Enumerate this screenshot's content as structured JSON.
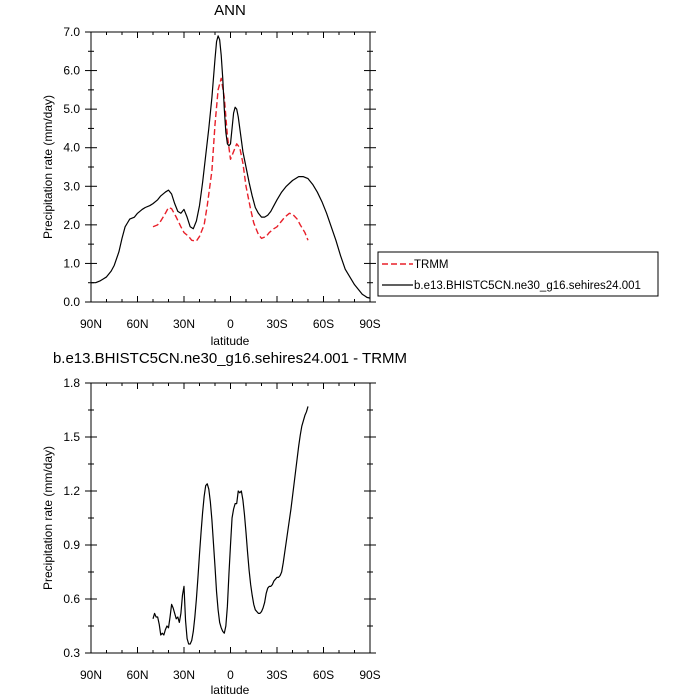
{
  "chart_data": [
    {
      "type": "line",
      "title": "ANN",
      "xlabel": "latitude",
      "ylabel": "Precipitation rate (mm/day)",
      "xlim": [
        -90,
        90
      ],
      "ylim": [
        0,
        7
      ],
      "x_ticks": [
        -90,
        -60,
        -30,
        0,
        30,
        60,
        90
      ],
      "x_tick_labels": [
        "90N",
        "60N",
        "30N",
        "0",
        "30S",
        "60S",
        "90S"
      ],
      "y_ticks": [
        0,
        1,
        2,
        3,
        4,
        5,
        6,
        7
      ],
      "y_tick_labels": [
        "0.0",
        "1.0",
        "2.0",
        "3.0",
        "4.0",
        "5.0",
        "6.0",
        "7.0"
      ],
      "grid": false,
      "legend_position": "right",
      "series": [
        {
          "name": "TRMM",
          "color": "#e8202a",
          "style": "dashed",
          "x": [
            -50,
            -47,
            -45,
            -42,
            -40,
            -38,
            -35,
            -32,
            -30,
            -27,
            -25,
            -22,
            -20,
            -17,
            -15,
            -12,
            -10,
            -8,
            -6,
            -4,
            -2,
            0,
            2,
            4,
            6,
            8,
            10,
            13,
            15,
            18,
            20,
            23,
            25,
            28,
            30,
            33,
            35,
            38,
            40,
            43,
            45,
            48,
            50
          ],
          "y": [
            1.95,
            2.0,
            2.1,
            2.3,
            2.45,
            2.42,
            2.2,
            1.95,
            1.8,
            1.7,
            1.6,
            1.58,
            1.7,
            2.0,
            2.5,
            3.4,
            4.6,
            5.5,
            5.8,
            5.3,
            4.3,
            3.7,
            3.9,
            4.1,
            4.0,
            3.6,
            3.0,
            2.4,
            2.05,
            1.75,
            1.65,
            1.7,
            1.8,
            1.9,
            1.95,
            2.1,
            2.2,
            2.3,
            2.28,
            2.15,
            2.0,
            1.8,
            1.6
          ]
        },
        {
          "name": "b.e13.BHISTC5CN.ne30_g16.sehires24.001",
          "color": "#000000",
          "style": "solid",
          "x": [
            -90,
            -87,
            -84,
            -82,
            -80,
            -77,
            -75,
            -72,
            -70,
            -68,
            -65,
            -62,
            -60,
            -57,
            -55,
            -52,
            -50,
            -47,
            -45,
            -42,
            -40,
            -38,
            -36,
            -34,
            -32,
            -30,
            -28,
            -26,
            -24,
            -22,
            -20,
            -18,
            -16,
            -14,
            -12,
            -10,
            -9,
            -8,
            -7,
            -6,
            -5,
            -4,
            -3,
            -2,
            -1,
            0,
            1,
            2,
            3,
            4,
            5,
            6,
            7,
            8,
            10,
            12,
            14,
            16,
            18,
            20,
            22,
            24,
            26,
            28,
            30,
            33,
            36,
            40,
            44,
            47,
            50,
            53,
            56,
            59,
            62,
            65,
            68,
            71,
            74,
            77,
            80,
            83,
            85,
            87,
            88,
            90
          ],
          "y": [
            0.5,
            0.5,
            0.55,
            0.6,
            0.65,
            0.8,
            0.95,
            1.3,
            1.65,
            1.95,
            2.15,
            2.2,
            2.3,
            2.4,
            2.45,
            2.5,
            2.55,
            2.65,
            2.75,
            2.85,
            2.9,
            2.8,
            2.55,
            2.35,
            2.3,
            2.4,
            2.2,
            1.95,
            1.9,
            2.1,
            2.5,
            3.1,
            3.8,
            4.5,
            5.3,
            6.3,
            6.75,
            6.9,
            6.8,
            6.4,
            5.8,
            5.0,
            4.4,
            4.1,
            4.05,
            4.1,
            4.5,
            4.9,
            5.05,
            5.0,
            4.8,
            4.5,
            4.2,
            3.9,
            3.5,
            3.1,
            2.75,
            2.45,
            2.3,
            2.2,
            2.2,
            2.25,
            2.35,
            2.5,
            2.65,
            2.85,
            3.0,
            3.15,
            3.25,
            3.25,
            3.2,
            3.05,
            2.85,
            2.6,
            2.3,
            1.95,
            1.6,
            1.2,
            0.85,
            0.65,
            0.45,
            0.3,
            0.2,
            0.15,
            0.12,
            0.1
          ]
        }
      ]
    },
    {
      "type": "line",
      "title": "b.e13.BHISTC5CN.ne30_g16.sehires24.001 - TRMM",
      "xlabel": "latitude",
      "ylabel": "Precipitation rate (mm/day)",
      "xlim": [
        -90,
        90
      ],
      "ylim": [
        0.3,
        1.8
      ],
      "x_ticks": [
        -90,
        -60,
        -30,
        0,
        30,
        60,
        90
      ],
      "x_tick_labels": [
        "90N",
        "60N",
        "30N",
        "0",
        "30S",
        "60S",
        "90S"
      ],
      "y_ticks": [
        0.3,
        0.6,
        0.9,
        1.2,
        1.5,
        1.8
      ],
      "y_tick_labels": [
        "0.3",
        "0.6",
        "0.9",
        "1.2",
        "1.5",
        "1.8"
      ],
      "grid": false,
      "series": [
        {
          "color": "#000000",
          "style": "solid",
          "x": [
            -50,
            -49,
            -48,
            -47,
            -46,
            -45,
            -44,
            -43,
            -42,
            -41,
            -40,
            -39,
            -38,
            -37,
            -36,
            -35,
            -34,
            -33,
            -32,
            -31,
            -30,
            -29,
            -28,
            -27,
            -26,
            -25,
            -24,
            -23,
            -22,
            -21,
            -20,
            -19,
            -18,
            -17,
            -16,
            -15,
            -14,
            -13,
            -12,
            -11,
            -10,
            -9,
            -8,
            -7,
            -6,
            -5,
            -4,
            -3,
            -2,
            -1,
            0,
            1,
            2,
            3,
            4,
            5,
            6,
            7,
            8,
            9,
            10,
            11,
            12,
            13,
            14,
            15,
            16,
            17,
            18,
            19,
            20,
            21,
            22,
            23,
            24,
            25,
            26,
            27,
            28,
            29,
            30,
            31,
            32,
            33,
            34,
            35,
            36,
            37,
            38,
            39,
            40,
            41,
            42,
            43,
            44,
            45,
            46,
            47,
            48,
            49,
            50
          ],
          "y": [
            0.49,
            0.52,
            0.5,
            0.5,
            0.46,
            0.4,
            0.41,
            0.4,
            0.43,
            0.45,
            0.44,
            0.5,
            0.57,
            0.55,
            0.52,
            0.49,
            0.5,
            0.47,
            0.52,
            0.62,
            0.67,
            0.48,
            0.38,
            0.35,
            0.35,
            0.37,
            0.42,
            0.5,
            0.6,
            0.72,
            0.85,
            0.97,
            1.08,
            1.17,
            1.23,
            1.24,
            1.21,
            1.14,
            1.04,
            0.91,
            0.78,
            0.64,
            0.54,
            0.47,
            0.44,
            0.42,
            0.41,
            0.45,
            0.56,
            0.74,
            0.9,
            1.05,
            1.1,
            1.13,
            1.13,
            1.2,
            1.19,
            1.2,
            1.15,
            1.07,
            0.97,
            0.86,
            0.76,
            0.68,
            0.62,
            0.57,
            0.54,
            0.53,
            0.52,
            0.52,
            0.53,
            0.55,
            0.58,
            0.63,
            0.66,
            0.67,
            0.67,
            0.68,
            0.7,
            0.71,
            0.72,
            0.72,
            0.73,
            0.75,
            0.8,
            0.86,
            0.92,
            0.98,
            1.04,
            1.1,
            1.17,
            1.24,
            1.31,
            1.38,
            1.45,
            1.51,
            1.56,
            1.59,
            1.62,
            1.64,
            1.67
          ]
        }
      ]
    }
  ]
}
